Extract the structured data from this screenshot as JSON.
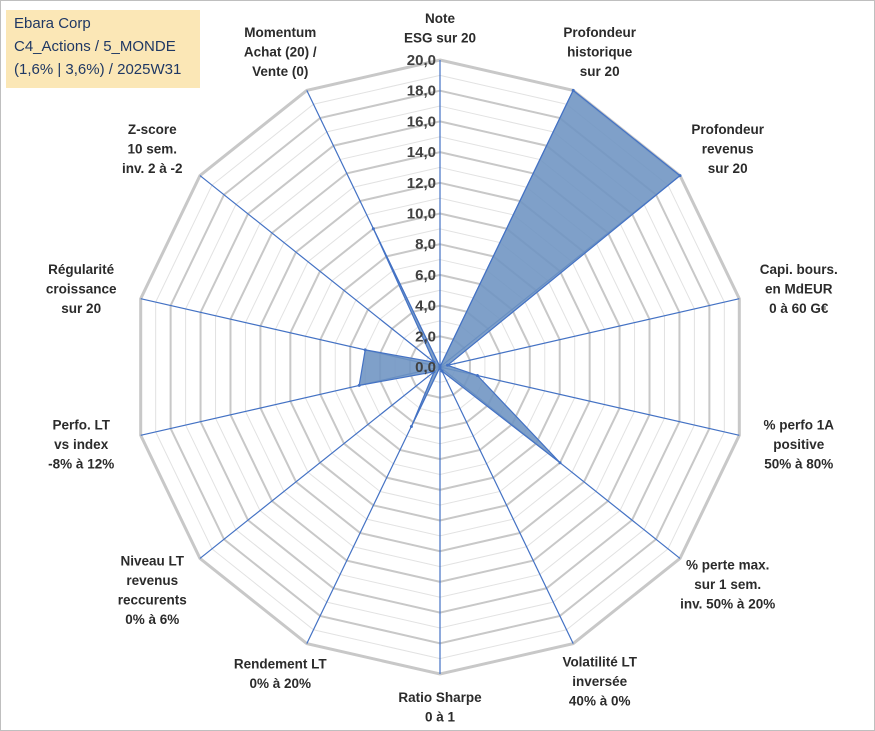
{
  "header": {
    "lines": [
      "Ebara Corp",
      "C4_Actions / 5_MONDE",
      "(1,6% | 3,6%) / 2025W31"
    ]
  },
  "chart_data": {
    "type": "radar",
    "scale": {
      "min": 0,
      "max": 20,
      "step": 2
    },
    "tick_labels": [
      "0,0",
      "2,0",
      "4,0",
      "6,0",
      "8,0",
      "10,0",
      "12,0",
      "14,0",
      "16,0",
      "18,0",
      "20,0"
    ],
    "axes": [
      {
        "label": [
          "Note",
          "ESG sur 20"
        ],
        "value": 0
      },
      {
        "label": [
          "Profondeur",
          "historique",
          "sur 20"
        ],
        "value": 20
      },
      {
        "label": [
          "Profondeur",
          "revenus",
          "sur 20"
        ],
        "value": 20
      },
      {
        "label": [
          "Capi. bours.",
          "en MdEUR",
          "0 à 60 G€"
        ],
        "value": 0.5
      },
      {
        "label": [
          "% perfo 1A",
          "positive",
          "50% à 80%"
        ],
        "value": 2.5
      },
      {
        "label": [
          "% perte max.",
          "sur 1 sem.",
          "inv. 50% à 20%"
        ],
        "value": 10
      },
      {
        "label": [
          "Volatilité LT",
          "inversée",
          "40% à 0%"
        ],
        "value": 0.3
      },
      {
        "label": [
          "Ratio Sharpe",
          "0 à 1"
        ],
        "value": 0
      },
      {
        "label": [
          "Rendement LT",
          "0% à 20%"
        ],
        "value": 4.3
      },
      {
        "label": [
          "Niveau LT",
          "revenus",
          "reccurents",
          "0% à 6%"
        ],
        "value": 0.5
      },
      {
        "label": [
          "Perfo. LT",
          "vs index",
          "-8% à 12%"
        ],
        "value": 5.4
      },
      {
        "label": [
          "Régularité",
          "croissance",
          "sur 20"
        ],
        "value": 5
      },
      {
        "label": [
          "Z-score",
          "10 sem.",
          "inv. 2 à -2"
        ],
        "value": 0.5
      },
      {
        "label": [
          "Momentum",
          "Achat (20) /",
          "Vente (0)"
        ],
        "value": 10
      }
    ],
    "colors": {
      "fill": "#6d93c1",
      "stroke": "#4472c4",
      "spoke": "#4472c4",
      "grid_major": "#c8c8c8",
      "grid_minor": "#e2e2e2"
    }
  }
}
